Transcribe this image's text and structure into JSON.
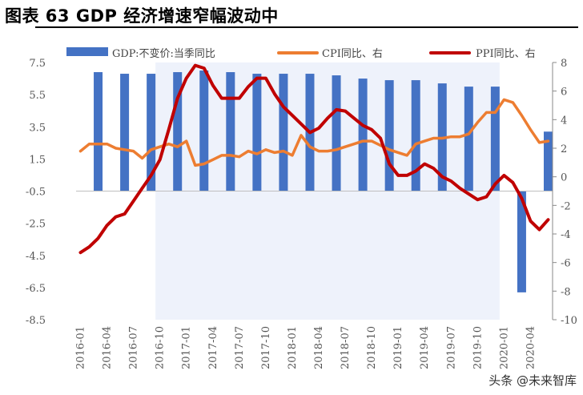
{
  "title": "图表 63 GDP 经济增速窄幅波动中",
  "watermark": "头条 @未来智库",
  "chart_data": {
    "type": "bar+line",
    "categories": [
      "2016-01",
      "2016-02",
      "2016-03",
      "2016-04",
      "2016-05",
      "2016-06",
      "2016-07",
      "2016-08",
      "2016-09",
      "2016-10",
      "2016-11",
      "2016-12",
      "2017-01",
      "2017-02",
      "2017-03",
      "2017-04",
      "2017-05",
      "2017-06",
      "2017-07",
      "2017-08",
      "2017-09",
      "2017-10",
      "2017-11",
      "2017-12",
      "2018-01",
      "2018-02",
      "2018-03",
      "2018-04",
      "2018-05",
      "2018-06",
      "2018-07",
      "2018-08",
      "2018-09",
      "2018-10",
      "2018-11",
      "2018-12",
      "2019-01",
      "2019-02",
      "2019-03",
      "2019-04",
      "2019-05",
      "2019-06",
      "2019-07",
      "2019-08",
      "2019-09",
      "2019-10",
      "2019-11",
      "2019-12",
      "2020-01",
      "2020-02",
      "2020-03",
      "2020-04",
      "2020-05",
      "2020-06"
    ],
    "x_tick_labels": [
      "2016-01",
      "2016-04",
      "2016-07",
      "2016-10",
      "2017-01",
      "2017-04",
      "2017-07",
      "2017-10",
      "2018-01",
      "2018-04",
      "2018-07",
      "2018-10",
      "2019-01",
      "2019-04",
      "2019-07",
      "2019-10",
      "2020-01",
      "2020-04"
    ],
    "left_axis": {
      "ylim": [
        -8.5,
        7.5
      ],
      "ticks": [
        "7.5",
        "5.5",
        "3.5",
        "1.5",
        "-0.5",
        "-2.5",
        "-4.5",
        "-6.5",
        "-8.5"
      ]
    },
    "right_axis": {
      "ylim": [
        -10,
        8
      ],
      "ticks": [
        "8",
        "6",
        "4",
        "2",
        "0",
        "-2",
        "-4",
        "-6",
        "-8",
        "-10"
      ]
    },
    "series": [
      {
        "name": "GDP:不变价:当季同比",
        "type": "bar",
        "axis": "left",
        "color": "#4472C4",
        "points": [
          [
            "2016-03",
            6.9
          ],
          [
            "2016-06",
            6.8
          ],
          [
            "2016-09",
            6.8
          ],
          [
            "2016-12",
            6.9
          ],
          [
            "2017-03",
            7.0
          ],
          [
            "2017-06",
            6.9
          ],
          [
            "2017-09",
            6.8
          ],
          [
            "2017-12",
            6.8
          ],
          [
            "2018-03",
            6.8
          ],
          [
            "2018-06",
            6.7
          ],
          [
            "2018-09",
            6.5
          ],
          [
            "2018-12",
            6.4
          ],
          [
            "2019-03",
            6.4
          ],
          [
            "2019-06",
            6.2
          ],
          [
            "2019-09",
            6.0
          ],
          [
            "2019-12",
            6.0
          ],
          [
            "2020-03",
            -6.8
          ],
          [
            "2020-06",
            3.2
          ]
        ]
      },
      {
        "name": "CPI同比、右",
        "type": "line",
        "axis": "right",
        "color": "#ED7D31",
        "values": [
          1.8,
          2.3,
          2.3,
          2.3,
          2.0,
          1.9,
          1.8,
          1.3,
          1.9,
          2.1,
          2.3,
          2.1,
          2.5,
          0.8,
          0.9,
          1.2,
          1.5,
          1.5,
          1.4,
          1.8,
          1.6,
          1.9,
          1.7,
          1.8,
          1.5,
          2.9,
          2.1,
          1.8,
          1.8,
          1.9,
          2.1,
          2.3,
          2.5,
          2.5,
          2.2,
          1.9,
          1.7,
          1.5,
          2.3,
          2.5,
          2.7,
          2.7,
          2.8,
          2.8,
          3.0,
          3.8,
          4.5,
          4.5,
          5.4,
          5.2,
          4.3,
          3.3,
          2.4,
          2.5
        ]
      },
      {
        "name": "PPI同比、右",
        "type": "line",
        "axis": "right",
        "color": "#C00000",
        "values": [
          -5.3,
          -4.9,
          -4.3,
          -3.4,
          -2.8,
          -2.6,
          -1.7,
          -0.8,
          0.1,
          1.2,
          3.3,
          5.5,
          6.9,
          7.8,
          7.6,
          6.4,
          5.5,
          5.5,
          5.5,
          6.3,
          6.9,
          6.9,
          5.8,
          4.9,
          4.3,
          3.7,
          3.1,
          3.4,
          4.1,
          4.7,
          4.6,
          4.1,
          3.6,
          3.3,
          2.7,
          0.9,
          0.1,
          0.1,
          0.4,
          0.9,
          0.6,
          0.0,
          -0.3,
          -0.8,
          -1.2,
          -1.6,
          -1.4,
          -0.5,
          0.1,
          -0.4,
          -1.5,
          -3.1,
          -3.7,
          -3.0
        ]
      }
    ],
    "shaded_region": [
      "2016-10",
      "2019-12"
    ]
  }
}
